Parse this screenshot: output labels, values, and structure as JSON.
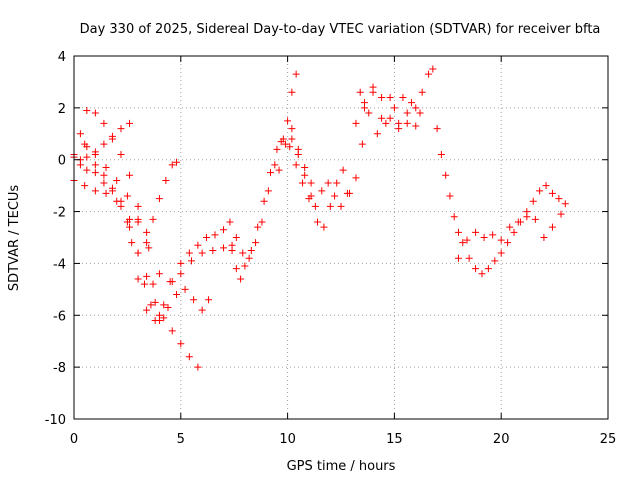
{
  "chart_data": {
    "type": "scatter",
    "title": "Day 330 of 2025, Sidereal Day-to-day VTEC variation (SDTVAR) for receiver bfta",
    "xlabel": "GPS time / hours",
    "ylabel": "SDTVAR / TECUs",
    "xlim": [
      0,
      25
    ],
    "ylim": [
      -10,
      4
    ],
    "xticks": [
      0,
      5,
      10,
      15,
      20,
      25
    ],
    "yticks": [
      -10,
      -8,
      -6,
      -4,
      -2,
      0,
      2,
      4
    ],
    "xtick_labels": [
      "0",
      "5",
      "10",
      "15",
      "20",
      "25"
    ],
    "ytick_labels": [
      "-10",
      "-8",
      "-6",
      "-4",
      "-2",
      "0",
      "2",
      "4"
    ],
    "grid": true,
    "marker": "plus",
    "color": "#ff0000",
    "series": [
      {
        "x": [
          0.0,
          0.3,
          0.6,
          1.0,
          1.4,
          1.8,
          2.2,
          2.6,
          3.0,
          3.4,
          3.8,
          4.2,
          4.6,
          5.0,
          5.4,
          5.8
        ],
        "y": [
          0.2,
          0.0,
          -0.4,
          -0.5,
          -0.9,
          -1.2,
          -1.8,
          -2.6,
          -3.6,
          -4.5,
          -5.5,
          -6.1,
          -6.6,
          -7.1,
          -7.6,
          -8.0
        ]
      },
      {
        "x": [
          0.0,
          0.5,
          1.0,
          1.5,
          2.0,
          2.5,
          3.0,
          3.3,
          3.6,
          4.0,
          4.4,
          4.8,
          5.2,
          5.6,
          6.0,
          6.3
        ],
        "y": [
          -0.8,
          -1.0,
          -1.2,
          -1.3,
          -1.6,
          -2.4,
          -3.6,
          -4.8,
          -5.6,
          -6.0,
          -5.7,
          -5.2,
          -5.0,
          -5.4,
          -5.8,
          -5.4
        ]
      },
      {
        "x": [
          0.3,
          0.6,
          1.0,
          1.4,
          1.8,
          2.2,
          2.6,
          3.0,
          3.4,
          3.7,
          4.0,
          4.3,
          4.6,
          4.8
        ],
        "y": [
          1.0,
          0.5,
          -0.2,
          -0.6,
          -1.1,
          -1.6,
          -2.3,
          -2.4,
          -2.8,
          -2.3,
          -1.5,
          -0.8,
          -0.2,
          -0.1
        ]
      },
      {
        "x": [
          0.0,
          0.3,
          0.6,
          1.0,
          1.4,
          1.8,
          2.2,
          2.6
        ],
        "y": [
          0.1,
          -0.2,
          0.1,
          0.3,
          0.6,
          0.9,
          1.2,
          1.4
        ]
      },
      {
        "x": [
          0.6,
          1.0,
          1.4,
          1.8,
          2.2,
          2.6,
          3.0,
          3.4,
          3.7,
          4.0
        ],
        "y": [
          1.9,
          1.8,
          1.4,
          0.8,
          0.2,
          -0.6,
          -1.8,
          -3.2,
          -4.8,
          -6.2
        ]
      },
      {
        "x": [
          0.5,
          1.0,
          1.5,
          2.0,
          2.5,
          3.0,
          3.5,
          4.0,
          4.5,
          5.0,
          5.5,
          6.0,
          6.5,
          7.0,
          7.4
        ],
        "y": [
          0.6,
          0.2,
          -0.3,
          -0.8,
          -1.4,
          -2.3,
          -3.4,
          -4.4,
          -4.7,
          -4.4,
          -3.9,
          -3.6,
          -3.5,
          -3.4,
          -3.3
        ]
      },
      {
        "x": [
          2.7,
          3.0,
          3.4,
          3.8,
          4.2,
          4.6,
          5.0,
          5.4,
          5.8,
          6.2,
          6.6,
          7.0,
          7.3
        ],
        "y": [
          -3.2,
          -4.6,
          -5.8,
          -6.2,
          -5.6,
          -4.7,
          -4.0,
          -3.6,
          -3.3,
          -3.0,
          -2.9,
          -2.7,
          -2.4
        ]
      },
      {
        "x": [
          7.4,
          7.6,
          7.8,
          8.0,
          8.3,
          8.6,
          8.9,
          9.2,
          9.5,
          9.8,
          10.1,
          10.4,
          10.7,
          11.0,
          11.3,
          11.6,
          11.9,
          12.2,
          12.5,
          12.8
        ],
        "y": [
          -3.5,
          -4.2,
          -4.6,
          -4.1,
          -3.5,
          -2.6,
          -1.6,
          -0.5,
          0.4,
          0.8,
          0.5,
          -0.2,
          -0.9,
          -1.5,
          -1.8,
          -1.2,
          -0.9,
          -1.4,
          -1.8,
          -1.3
        ]
      },
      {
        "x": [
          7.6,
          7.9,
          8.2,
          8.5,
          8.8,
          9.1,
          9.4,
          9.7,
          10.0,
          10.2,
          10.4
        ],
        "y": [
          -3.0,
          -3.6,
          -3.8,
          -3.2,
          -2.4,
          -1.2,
          -0.2,
          0.7,
          1.5,
          2.6,
          3.3
        ]
      },
      {
        "x": [
          10.2,
          10.5,
          10.8,
          11.1,
          11.4,
          11.7,
          12.0,
          12.3,
          12.6,
          12.9,
          13.2,
          13.5
        ],
        "y": [
          0.8,
          0.2,
          -0.6,
          -1.4,
          -2.4,
          -2.6,
          -1.8,
          -0.9,
          -0.4,
          -1.3,
          -0.7,
          0.6
        ]
      },
      {
        "x": [
          9.6,
          9.9,
          10.2,
          10.5,
          10.8,
          11.1
        ],
        "y": [
          -0.4,
          0.6,
          1.2,
          0.4,
          -0.3,
          -0.9
        ]
      },
      {
        "x": [
          13.2,
          13.6,
          14.0,
          14.4,
          14.8,
          15.2,
          15.6,
          16.0,
          16.3,
          16.6,
          16.8
        ],
        "y": [
          1.4,
          2.2,
          2.8,
          2.4,
          1.6,
          1.2,
          1.4,
          2.0,
          2.6,
          3.3,
          3.5
        ]
      },
      {
        "x": [
          13.4,
          13.8,
          14.2,
          14.6,
          15.0,
          15.4,
          15.8,
          16.2
        ],
        "y": [
          2.6,
          1.8,
          1.0,
          1.4,
          2.0,
          2.4,
          2.2,
          1.8
        ]
      },
      {
        "x": [
          13.6,
          14.0,
          14.4,
          14.8,
          15.2,
          15.6,
          16.0
        ],
        "y": [
          2.0,
          2.6,
          1.6,
          2.4,
          1.4,
          1.8,
          1.3
        ]
      },
      {
        "x": [
          17.0,
          17.2,
          17.4,
          17.6,
          17.8,
          18.0,
          18.2,
          18.5,
          18.8,
          19.1,
          19.4,
          19.7,
          20.0,
          20.3,
          20.6,
          20.9,
          21.2,
          21.5,
          21.8,
          22.1,
          22.4,
          22.7,
          23.0
        ],
        "y": [
          1.2,
          0.2,
          -0.6,
          -1.4,
          -2.2,
          -2.8,
          -3.2,
          -3.8,
          -4.2,
          -4.4,
          -4.2,
          -3.9,
          -3.6,
          -3.2,
          -2.8,
          -2.4,
          -2.0,
          -1.6,
          -1.2,
          -1.0,
          -1.3,
          -1.5,
          -1.7
        ]
      },
      {
        "x": [
          18.0,
          18.4,
          18.8,
          19.2,
          19.6,
          20.0,
          20.4,
          20.8,
          21.2,
          21.6,
          22.0,
          22.4,
          22.8
        ],
        "y": [
          -3.8,
          -3.1,
          -2.8,
          -3.0,
          -2.9,
          -3.1,
          -2.6,
          -2.4,
          -2.2,
          -2.3,
          -3.0,
          -2.6,
          -2.1
        ]
      }
    ]
  }
}
